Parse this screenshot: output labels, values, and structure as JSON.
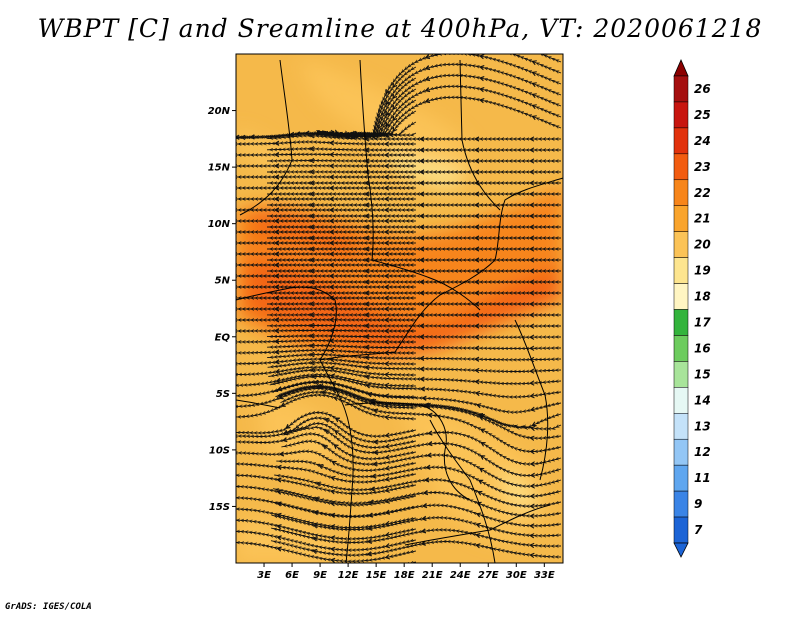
{
  "title": "WBPT [C] and Sreamline at 400hPa, VT: 2020061218",
  "credit": "GrADS: IGES/COLA",
  "map": {
    "lon_range": [
      0,
      35
    ],
    "lat_range": [
      -20,
      25
    ],
    "lat_ticks": [
      {
        "value": 20,
        "label": "20N"
      },
      {
        "value": 15,
        "label": "15N"
      },
      {
        "value": 10,
        "label": "10N"
      },
      {
        "value": 5,
        "label": "5N"
      },
      {
        "value": 0,
        "label": "EQ"
      },
      {
        "value": -5,
        "label": "5S"
      },
      {
        "value": -10,
        "label": "10S"
      },
      {
        "value": -15,
        "label": "15S"
      }
    ],
    "lon_ticks": [
      {
        "value": 3,
        "label": "3E"
      },
      {
        "value": 6,
        "label": "6E"
      },
      {
        "value": 9,
        "label": "9E"
      },
      {
        "value": 12,
        "label": "12E"
      },
      {
        "value": 15,
        "label": "15E"
      },
      {
        "value": 18,
        "label": "18E"
      },
      {
        "value": 21,
        "label": "21E"
      },
      {
        "value": 24,
        "label": "24E"
      },
      {
        "value": 27,
        "label": "27E"
      },
      {
        "value": 30,
        "label": "30E"
      },
      {
        "value": 33,
        "label": "33E"
      }
    ],
    "base_color": "#f5b94a",
    "streamline_color": "#111111",
    "border_color": "#000000"
  },
  "colorbar": {
    "levels": [
      "26",
      "25",
      "24",
      "23",
      "22",
      "21",
      "20",
      "19",
      "18",
      "17",
      "16",
      "15",
      "14",
      "13",
      "12",
      "11",
      "9",
      "7"
    ],
    "colors": [
      "#a50f0f",
      "#c8150f",
      "#e2320c",
      "#f25c10",
      "#f7851a",
      "#f9a42c",
      "#fbc357",
      "#fde58f",
      "#fff5c2",
      "#33b43c",
      "#6dcc5e",
      "#a8e49a",
      "#e6f8f4",
      "#c4e2f9",
      "#93c6f5",
      "#5fa6ef",
      "#3a84e6",
      "#1c64d6"
    ]
  }
}
